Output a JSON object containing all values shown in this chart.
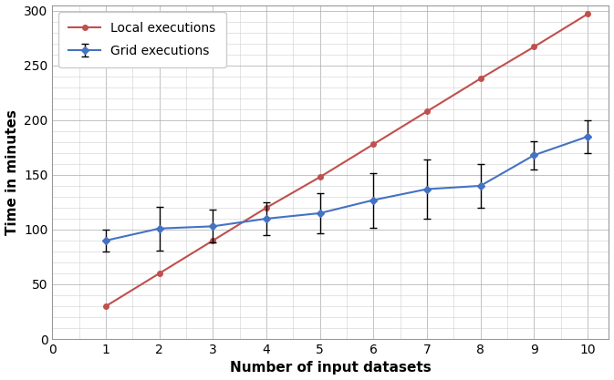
{
  "x": [
    1,
    2,
    3,
    4,
    5,
    6,
    7,
    8,
    9,
    10
  ],
  "grid_y": [
    90,
    101,
    103,
    110,
    115,
    127,
    137,
    140,
    168,
    185
  ],
  "local_y": [
    30,
    60,
    90,
    120,
    148,
    178,
    208,
    238,
    267,
    297
  ],
  "grid_yerr_lower": [
    10,
    20,
    15,
    15,
    18,
    25,
    27,
    20,
    13,
    15
  ],
  "grid_yerr_upper": [
    10,
    20,
    15,
    15,
    18,
    25,
    27,
    20,
    13,
    15
  ],
  "grid_color": "#4472C4",
  "local_color": "#C0504D",
  "grid_label": "Grid executions",
  "local_label": "Local executions",
  "xlabel": "Number of input datasets",
  "ylabel": "Time in minutes",
  "xlim": [
    0,
    10.4
  ],
  "ylim": [
    0,
    305
  ],
  "yticks": [
    0,
    50,
    100,
    150,
    200,
    250,
    300
  ],
  "xticks": [
    0,
    1,
    2,
    3,
    4,
    5,
    6,
    7,
    8,
    9,
    10
  ],
  "axis_label_fontsize": 11,
  "tick_fontsize": 10,
  "legend_fontsize": 10,
  "bg_color": "#ffffff",
  "plot_bg_color": "#ffffff",
  "minor_grid_color": "#d0d0d0",
  "major_grid_color": "#aaaaaa"
}
